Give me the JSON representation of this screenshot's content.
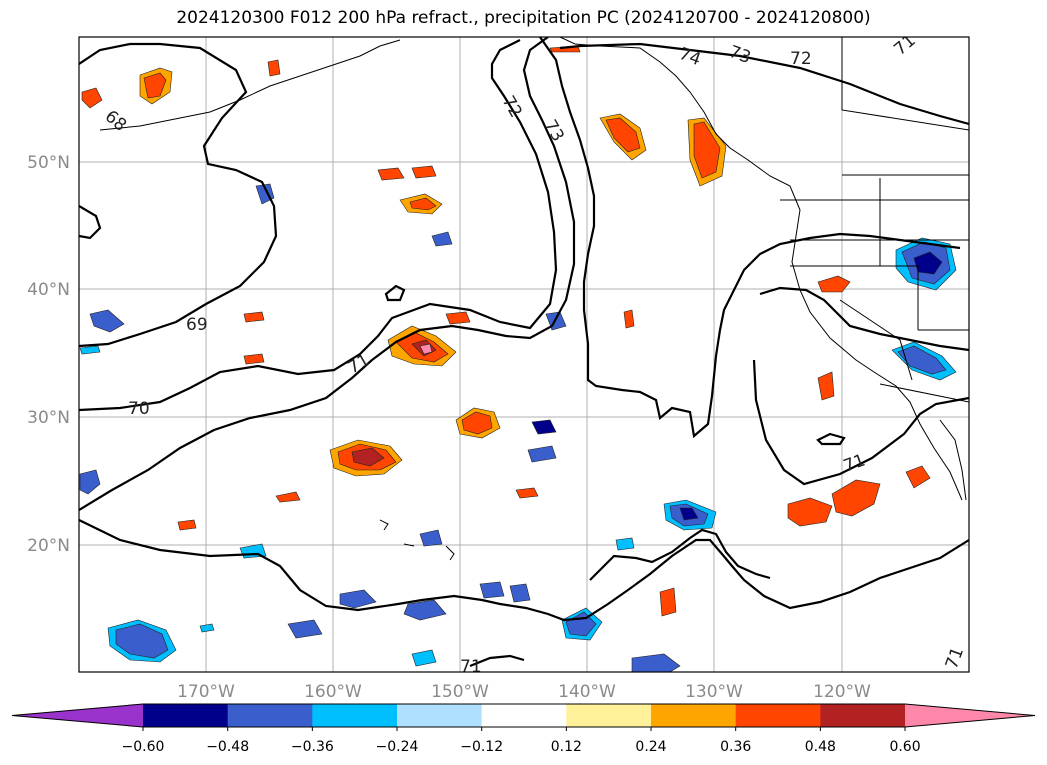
{
  "title": "2024120300 F012 200 hPa refract., precipitation PC (2024120700 - 2024120800)",
  "lat_labels": [
    "50°N",
    "40°N",
    "30°N",
    "20°N"
  ],
  "lon_labels": [
    "170°W",
    "160°W",
    "150°W",
    "140°W",
    "130°W",
    "120°W"
  ],
  "colorbar": {
    "ticks": [
      "−0.60",
      "−0.48",
      "−0.36",
      "−0.24",
      "−0.12",
      "0.12",
      "0.24",
      "0.36",
      "0.48",
      "0.60"
    ],
    "colors": [
      "#9933cc",
      "#00008b",
      "#3a5fcd",
      "#00bfff",
      "#b0e0ff",
      "#ffffff",
      "#fff09a",
      "#ffa500",
      "#ff4500",
      "#b22222",
      "#ff88aa"
    ]
  },
  "contour_labels": [
    "68",
    "69",
    "70",
    "71",
    "72",
    "73",
    "74",
    "73",
    "72",
    "71",
    "71",
    "71",
    "71"
  ]
}
